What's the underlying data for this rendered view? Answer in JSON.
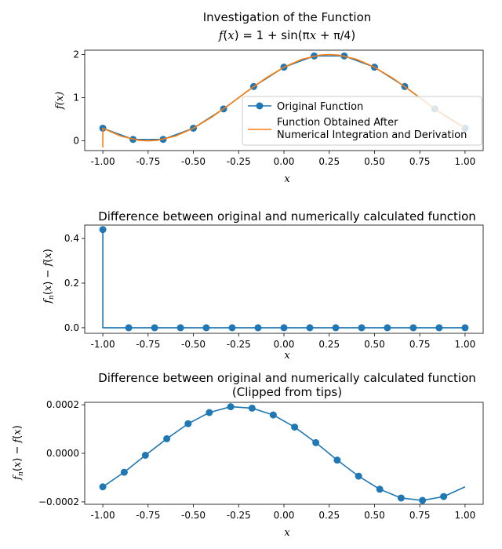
{
  "colors": {
    "series1": "#1f77b4",
    "series2": "#ff7f0e"
  },
  "chart_data": [
    {
      "type": "line",
      "title": "Investigation of the Function",
      "subtitle": "f(x) = 1 + sin(πx + π/4)",
      "xlabel": "x",
      "ylabel": "f(x)",
      "xlim": [
        -1.1,
        1.1
      ],
      "ylim": [
        -0.225,
        2.1
      ],
      "xticks": [
        "-1.00",
        "-0.75",
        "-0.50",
        "-0.25",
        "0.00",
        "0.25",
        "0.50",
        "0.75",
        "1.00"
      ],
      "yticks": [
        "0",
        "1",
        "2"
      ],
      "legend_placement": "lower-right",
      "series": [
        {
          "name": "Original Function",
          "style": "line-with-markers",
          "x": [
            -1.0,
            -0.833,
            -0.667,
            -0.5,
            -0.333,
            -0.167,
            0.0,
            0.167,
            0.333,
            0.5,
            0.667,
            0.833,
            1.0
          ],
          "y": [
            0.293,
            0.034,
            0.034,
            0.293,
            0.741,
            1.259,
            1.707,
            1.966,
            1.966,
            1.707,
            1.259,
            0.741,
            0.293
          ]
        },
        {
          "name": "Function Obtained After\nNumerical Integration and Derivation",
          "style": "line",
          "x": [
            -1.0,
            -1.0,
            -0.9,
            -0.8,
            -0.75,
            -0.7,
            -0.6,
            -0.5,
            -0.4,
            -0.3,
            -0.2,
            -0.1,
            0.0,
            0.1,
            0.2,
            0.25,
            0.3,
            0.4,
            0.5,
            0.6,
            0.7,
            0.8,
            0.9,
            1.0
          ],
          "y": [
            -0.15,
            0.293,
            0.109,
            0.012,
            0.0,
            0.012,
            0.109,
            0.293,
            0.546,
            0.844,
            1.156,
            1.454,
            1.707,
            1.891,
            1.988,
            2.0,
            1.988,
            1.891,
            1.707,
            1.454,
            1.156,
            0.844,
            0.546,
            0.293
          ]
        }
      ]
    },
    {
      "type": "line",
      "title": "Difference between original and numerically calculated function",
      "xlabel": "x",
      "ylabel": "f_n(x) − f(x)",
      "xlim": [
        -1.1,
        1.1
      ],
      "ylim": [
        -0.025,
        0.46
      ],
      "xticks": [
        "-1.00",
        "-0.75",
        "-0.50",
        "-0.25",
        "0.00",
        "0.25",
        "0.50",
        "0.75",
        "1.00"
      ],
      "yticks": [
        "0.0",
        "0.2",
        "0.4"
      ],
      "series": [
        {
          "style": "line-with-markers",
          "x": [
            -1.0,
            -1.0,
            -0.857,
            -0.714,
            -0.571,
            -0.429,
            -0.286,
            -0.143,
            0.0,
            0.143,
            0.286,
            0.429,
            0.571,
            0.714,
            0.857,
            1.0
          ],
          "y": [
            0.44,
            0.0,
            0.0,
            0.0,
            0.0,
            0.0,
            0.0,
            0.0,
            0.0,
            0.0,
            0.0,
            0.0,
            0.0,
            0.0,
            0.0,
            0.0
          ],
          "marker_start_index": 0,
          "marker_skip": [
            1
          ]
        }
      ]
    },
    {
      "type": "line",
      "title": "Difference between original and numerically calculated function",
      "subtitle": "(Clipped from tips)",
      "xlabel": "x",
      "ylabel": "f_n(x) − f(x)",
      "xlim": [
        -1.1,
        1.1
      ],
      "ylim": [
        -0.00021,
        0.00021
      ],
      "xticks": [
        "-1.00",
        "-0.75",
        "-0.50",
        "-0.25",
        "0.00",
        "0.25",
        "0.50",
        "0.75",
        "1.00"
      ],
      "yticks": [
        "−0.0002",
        "0.0000",
        "0.0002"
      ],
      "series": [
        {
          "style": "line-with-markers",
          "x": [
            -1.0,
            -0.882,
            -0.765,
            -0.647,
            -0.529,
            -0.412,
            -0.294,
            -0.176,
            -0.059,
            0.059,
            0.176,
            0.294,
            0.412,
            0.529,
            0.647,
            0.765,
            0.882,
            1.0
          ],
          "y": [
            -0.000138,
            -7.8e-05,
            -8e-06,
            6e-05,
            0.000122,
            0.000168,
            0.000192,
            0.000186,
            0.000158,
            0.000108,
            4.4e-05,
            -2.8e-05,
            -9.4e-05,
            -0.000148,
            -0.000184,
            -0.000194,
            -0.000178,
            -0.000138
          ],
          "marker_skip_last": true
        }
      ]
    }
  ]
}
